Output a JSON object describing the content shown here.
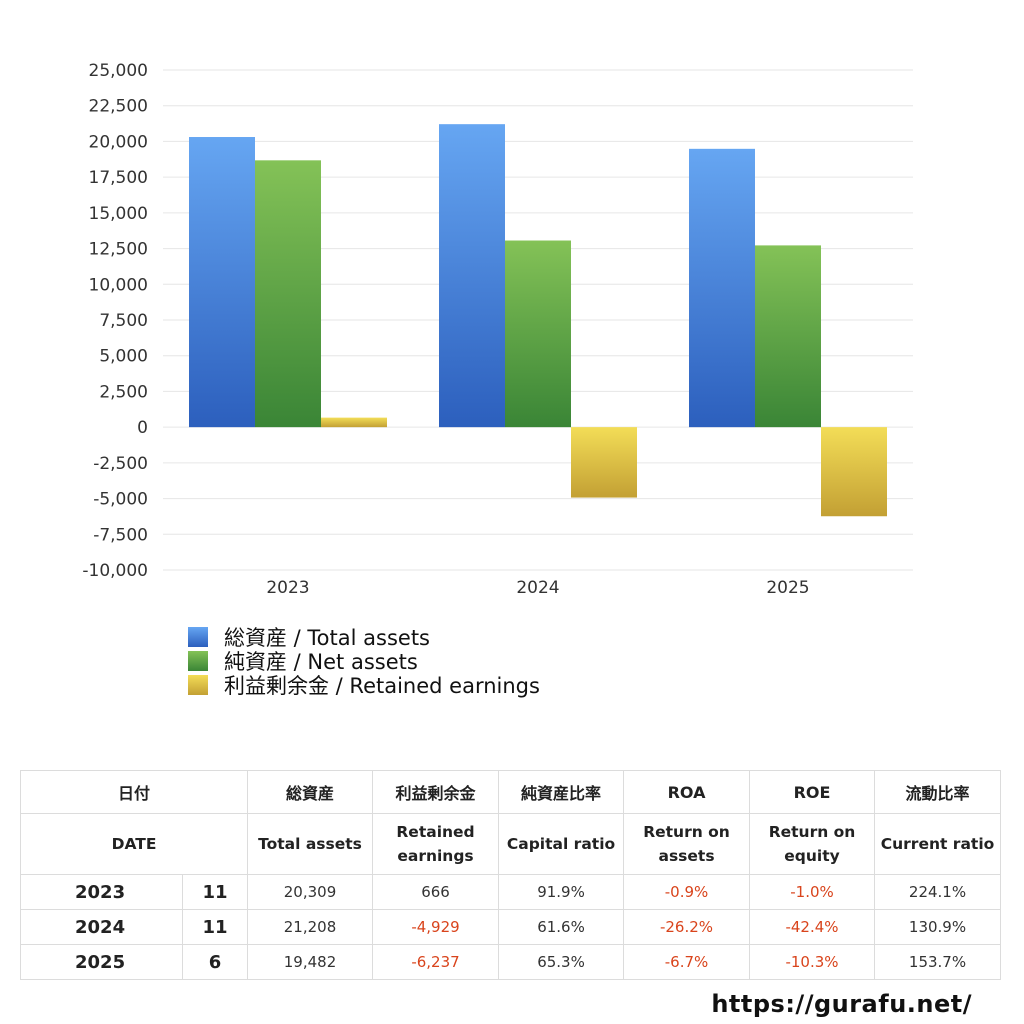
{
  "chart_data": {
    "type": "bar",
    "categories": [
      "2023",
      "2024",
      "2025"
    ],
    "series": [
      {
        "name": "総資産 / Total assets",
        "values": [
          20309,
          21208,
          19482
        ],
        "color": "#3d7fd9"
      },
      {
        "name": "純資産 / Net assets",
        "values": [
          18677,
          13064,
          12722
        ],
        "color": "#5aa341"
      },
      {
        "name": "利益剰余金 / Retained earnings",
        "values": [
          666,
          -4929,
          -6237
        ],
        "color": "#d8bc3c"
      }
    ],
    "ylim": [
      -10000,
      25000
    ],
    "yticks": [
      25000,
      22500,
      20000,
      17500,
      15000,
      12500,
      10000,
      7500,
      5000,
      2500,
      0,
      -2500,
      -5000,
      -7500,
      -10000
    ],
    "ytick_labels": [
      "25,000",
      "22,500",
      "20,000",
      "17,500",
      "15,000",
      "12,500",
      "10,000",
      "7,500",
      "5,000",
      "2,500",
      "0",
      "-2,500",
      "-5,000",
      "-7,500",
      "-10,000"
    ],
    "grid": true,
    "legend_position": "bottom-left"
  },
  "table": {
    "headers_ja": [
      "日付",
      "総資産",
      "利益剰余金",
      "純資産比率",
      "ROA",
      "ROE",
      "流動比率"
    ],
    "headers_en": [
      "DATE",
      "Total assets",
      "Retained earnings",
      "Capital ratio",
      "Return on assets",
      "Return on equity",
      "Current ratio"
    ],
    "rows": [
      {
        "year": "2023",
        "month": "11",
        "total_assets": "20,309",
        "retained_earnings": "666",
        "capital_ratio": "91.9%",
        "roa": "-0.9%",
        "roe": "-1.0%",
        "current_ratio": "224.1%"
      },
      {
        "year": "2024",
        "month": "11",
        "total_assets": "21,208",
        "retained_earnings": "-4,929",
        "capital_ratio": "61.6%",
        "roa": "-26.2%",
        "roe": "-42.4%",
        "current_ratio": "130.9%"
      },
      {
        "year": "2025",
        "month": "6",
        "total_assets": "19,482",
        "retained_earnings": "-6,237",
        "capital_ratio": "65.3%",
        "roa": "-6.7%",
        "roe": "-10.3%",
        "current_ratio": "153.7%"
      }
    ]
  },
  "site_url": "https://gurafu.net/"
}
